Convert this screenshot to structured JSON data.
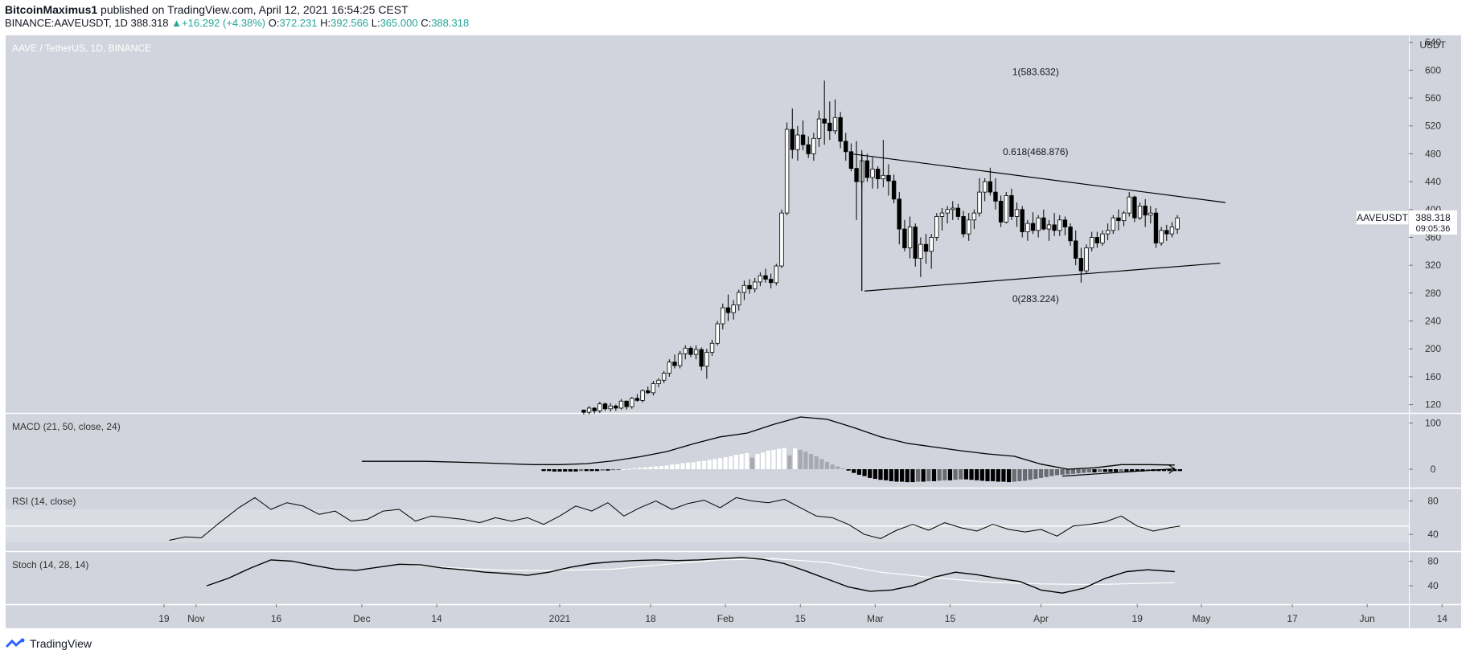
{
  "header": {
    "author": "BitcoinMaximus1",
    "published_text": "published on TradingView.com, April 12, 2021 16:54:25 CEST",
    "symbol_line": "BINANCE:AAVEUSDT, 1D",
    "last": "388.318",
    "change": "+16.292 (+4.38%)",
    "o_label": "O:",
    "o": "372.231",
    "h_label": "H:",
    "h": "392.566",
    "l_label": "L:",
    "l": "365.000",
    "c_label": "C:",
    "c": "388.318",
    "up_color": "#26a69a"
  },
  "footer": {
    "brand": "TradingView"
  },
  "chart_data": {
    "type": "candlestick",
    "title": "AAVE / TetherUS, 1D, BINANCE",
    "currency": "USDT",
    "price_label": {
      "symbol": "AAVEUSDT",
      "value": "388.318",
      "countdown": "09:05:36"
    },
    "y_ticks": [
      120,
      160,
      200,
      240,
      280,
      320,
      360,
      400,
      440,
      480,
      520,
      560,
      600,
      640
    ],
    "ylim": [
      108,
      650
    ],
    "x_ticks": [
      "19",
      "Nov",
      "16",
      "Dec",
      "14",
      "2021",
      "18",
      "Feb",
      "15",
      "Mar",
      "15",
      "Apr",
      "19",
      "May",
      "17",
      "Jun",
      "14"
    ],
    "x_tick_days": [
      -74,
      -68,
      -53,
      -37,
      -23,
      0,
      17,
      31,
      45,
      59,
      73,
      90,
      108,
      120,
      137,
      151,
      165
    ],
    "candles": [
      [
        4.5,
        112,
        113,
        106,
        109
      ],
      [
        5.5,
        109,
        118,
        106,
        115
      ],
      [
        6.5,
        115,
        116,
        107,
        111
      ],
      [
        7.5,
        111,
        124,
        108,
        121
      ],
      [
        8.5,
        121,
        123,
        111,
        114
      ],
      [
        9.5,
        114,
        122,
        110,
        118
      ],
      [
        10.5,
        118,
        120,
        111,
        115
      ],
      [
        11.5,
        115,
        128,
        113,
        125
      ],
      [
        12.5,
        125,
        126,
        113,
        117
      ],
      [
        13.5,
        117,
        131,
        114,
        129
      ],
      [
        14.5,
        129,
        135,
        124,
        126
      ],
      [
        15.5,
        126,
        142,
        123,
        140
      ],
      [
        16.5,
        140,
        146,
        135,
        137
      ],
      [
        17.5,
        137,
        154,
        133,
        150
      ],
      [
        18.5,
        150,
        158,
        145,
        155
      ],
      [
        19.5,
        155,
        168,
        151,
        165
      ],
      [
        20.5,
        165,
        185,
        160,
        181
      ],
      [
        21.5,
        181,
        192,
        172,
        176
      ],
      [
        22.5,
        176,
        197,
        172,
        193
      ],
      [
        23.5,
        193,
        205,
        185,
        201
      ],
      [
        24.5,
        201,
        204,
        188,
        192
      ],
      [
        25.5,
        192,
        205,
        185,
        199
      ],
      [
        26.5,
        199,
        202,
        169,
        175
      ],
      [
        27.5,
        175,
        200,
        157,
        195
      ],
      [
        28.5,
        195,
        213,
        190,
        208
      ],
      [
        29.5,
        208,
        240,
        205,
        236
      ],
      [
        30.5,
        236,
        265,
        228,
        259
      ],
      [
        31.5,
        259,
        278,
        240,
        252
      ],
      [
        32.5,
        252,
        270,
        242,
        263
      ],
      [
        33.5,
        263,
        285,
        255,
        281
      ],
      [
        34.5,
        281,
        298,
        270,
        291
      ],
      [
        35.5,
        291,
        300,
        279,
        286
      ],
      [
        36.5,
        286,
        302,
        281,
        296
      ],
      [
        37.5,
        296,
        310,
        290,
        305
      ],
      [
        38.5,
        305,
        315,
        295,
        300
      ],
      [
        39.5,
        300,
        308,
        287,
        295
      ],
      [
        40.5,
        295,
        322,
        291,
        319
      ],
      [
        41.5,
        319,
        400,
        316,
        395
      ],
      [
        42.5,
        395,
        525,
        392,
        515
      ],
      [
        43.5,
        515,
        545,
        473,
        486
      ],
      [
        44.5,
        486,
        520,
        470,
        507
      ],
      [
        45.5,
        507,
        528,
        485,
        493
      ],
      [
        46.5,
        493,
        505,
        474,
        480
      ],
      [
        47.5,
        480,
        510,
        470,
        502
      ],
      [
        48.5,
        502,
        542,
        490,
        530
      ],
      [
        49.5,
        530,
        585,
        493,
        524
      ],
      [
        50.5,
        524,
        555,
        500,
        513
      ],
      [
        51.5,
        513,
        558,
        508,
        532
      ],
      [
        52.5,
        532,
        540,
        488,
        498
      ],
      [
        53.5,
        498,
        510,
        470,
        483
      ],
      [
        54.5,
        483,
        495,
        455,
        459
      ],
      [
        55.5,
        459,
        498,
        385,
        440
      ],
      [
        56.5,
        440,
        485,
        430,
        470
      ],
      [
        57.5,
        470,
        480,
        440,
        446
      ],
      [
        58.5,
        446,
        475,
        430,
        458
      ],
      [
        59.5,
        458,
        462,
        430,
        444
      ],
      [
        60.5,
        444,
        500,
        432,
        449
      ],
      [
        61.5,
        449,
        465,
        420,
        441
      ],
      [
        62.5,
        441,
        450,
        409,
        415
      ],
      [
        63.5,
        415,
        425,
        350,
        372
      ],
      [
        64.5,
        372,
        385,
        340,
        345
      ],
      [
        65.5,
        345,
        390,
        330,
        375
      ],
      [
        66.5,
        375,
        380,
        318,
        330
      ],
      [
        67.5,
        330,
        360,
        303,
        350
      ],
      [
        68.5,
        350,
        365,
        322,
        340
      ],
      [
        69.5,
        340,
        365,
        315,
        360
      ],
      [
        70.5,
        360,
        395,
        355,
        390
      ],
      [
        71.5,
        390,
        402,
        370,
        395
      ],
      [
        72.5,
        395,
        405,
        380,
        400
      ],
      [
        73.5,
        400,
        412,
        385,
        402
      ],
      [
        74.5,
        402,
        408,
        385,
        390
      ],
      [
        75.5,
        390,
        398,
        360,
        365
      ],
      [
        76.5,
        365,
        395,
        355,
        385
      ],
      [
        77.5,
        385,
        400,
        372,
        395
      ],
      [
        78.5,
        395,
        445,
        390,
        425
      ],
      [
        79.5,
        425,
        445,
        412,
        440
      ],
      [
        80.5,
        440,
        460,
        420,
        425
      ],
      [
        81.5,
        425,
        445,
        400,
        412
      ],
      [
        82.5,
        412,
        420,
        375,
        382
      ],
      [
        83.5,
        382,
        425,
        380,
        420
      ],
      [
        84.5,
        420,
        430,
        385,
        390
      ],
      [
        85.5,
        390,
        410,
        375,
        400
      ],
      [
        86.5,
        400,
        405,
        360,
        368
      ],
      [
        87.5,
        368,
        385,
        355,
        380
      ],
      [
        88.5,
        380,
        396,
        365,
        370
      ],
      [
        89.5,
        370,
        392,
        360,
        388
      ],
      [
        90.5,
        388,
        400,
        370,
        372
      ],
      [
        91.5,
        372,
        385,
        355,
        378
      ],
      [
        92.5,
        378,
        395,
        362,
        370
      ],
      [
        93.5,
        370,
        392,
        362,
        385
      ],
      [
        94.5,
        385,
        390,
        363,
        375
      ],
      [
        95.5,
        375,
        380,
        348,
        355
      ],
      [
        96.5,
        355,
        370,
        320,
        330
      ],
      [
        97.5,
        330,
        345,
        295,
        312
      ],
      [
        98.5,
        312,
        350,
        308,
        345
      ],
      [
        99.5,
        345,
        368,
        340,
        360
      ],
      [
        100.5,
        360,
        368,
        345,
        352
      ],
      [
        101.5,
        352,
        370,
        348,
        365
      ],
      [
        102.5,
        365,
        380,
        356,
        370
      ],
      [
        103.5,
        370,
        392,
        365,
        388
      ],
      [
        104.5,
        388,
        400,
        370,
        384
      ],
      [
        105.5,
        384,
        398,
        376,
        395
      ],
      [
        106.5,
        395,
        425,
        390,
        418
      ],
      [
        107.5,
        418,
        420,
        382,
        388
      ],
      [
        108.5,
        388,
        410,
        385,
        405
      ],
      [
        109.5,
        405,
        415,
        375,
        392
      ],
      [
        110.5,
        392,
        405,
        380,
        395
      ],
      [
        111.5,
        395,
        402,
        345,
        352
      ],
      [
        112.5,
        352,
        375,
        348,
        370
      ],
      [
        113.5,
        370,
        378,
        355,
        365
      ],
      [
        114.5,
        365,
        382,
        360,
        375
      ],
      [
        115.5,
        372,
        392,
        365,
        388
      ]
    ],
    "trendlines": [
      {
        "name": "triangle-upper",
        "points": [
          [
            54.5,
            480
          ],
          [
            124.5,
            410
          ]
        ]
      },
      {
        "name": "triangle-lower",
        "points": [
          [
            57,
            283
          ],
          [
            123.5,
            323
          ]
        ]
      },
      {
        "name": "fib-vertical",
        "points": [
          [
            56.5,
            283
          ],
          [
            56.5,
            480
          ]
        ]
      }
    ],
    "fib_labels": [
      {
        "text": "1(583.632)",
        "day": 89,
        "value": 583.632
      },
      {
        "text": "0.618(468.876)",
        "day": 89,
        "value": 468.876
      },
      {
        "text": "0(283.224)",
        "day": 89,
        "value": 283.224
      }
    ],
    "macd": {
      "label": "MACD (21, 50, close, 24)",
      "y_ticks": [
        0,
        100
      ],
      "ylim": [
        -40,
        120
      ],
      "line_days": [
        -37,
        -25,
        -15,
        -5,
        0,
        5,
        10,
        15,
        20,
        25,
        30,
        35,
        40,
        45,
        50,
        55,
        60,
        65,
        70,
        75,
        80,
        85,
        90,
        95,
        100,
        105,
        110,
        115
      ],
      "line": [
        17,
        17,
        14,
        10,
        10,
        12,
        18,
        27,
        38,
        55,
        70,
        78,
        97,
        113,
        108,
        90,
        70,
        56,
        48,
        40,
        33,
        28,
        11,
        0,
        3,
        10,
        10,
        9
      ],
      "hist_start_day": -3,
      "hist": [
        -4,
        -4,
        -5,
        -5,
        -5,
        -5,
        -5,
        -4,
        -4,
        -4,
        -4,
        -3,
        -3,
        -2,
        -1,
        0,
        1,
        2,
        3,
        4,
        5,
        6,
        7,
        8,
        10,
        11,
        13,
        14,
        15,
        17,
        18,
        20,
        22,
        24,
        26,
        28,
        31,
        33,
        35,
        25,
        33,
        36,
        40,
        42,
        44,
        46,
        30,
        45,
        42,
        38,
        33,
        28,
        22,
        16,
        10,
        6,
        2,
        -3,
        -8,
        -12,
        -15,
        -19,
        -21,
        -23,
        -24,
        -26,
        -27,
        -27,
        -28,
        -28,
        -27,
        -27,
        -26,
        -26,
        -25,
        -24,
        -24,
        -23,
        -22,
        -22,
        -23,
        -24,
        -25,
        -26,
        -26,
        -27,
        -27,
        -28,
        -27,
        -26,
        -25,
        -23,
        -21,
        -19,
        -17,
        -15,
        -13,
        -12,
        -11,
        -10,
        -9,
        -8,
        -7,
        -7,
        -6,
        -6,
        -6,
        -6,
        -5,
        -5,
        -5,
        -5,
        -5,
        -4,
        -4,
        -4,
        -4,
        -4,
        -4,
        -4
      ],
      "arrow": [
        [
          94,
          -15
        ],
        [
          115,
          1
        ]
      ]
    },
    "rsi": {
      "label": "RSI (14, close)",
      "y_ticks": [
        40,
        80
      ],
      "ylim": [
        20,
        95
      ],
      "band": [
        30,
        70
      ],
      "line_days": [
        -73,
        -70,
        -67,
        -64,
        -60,
        -57,
        -54,
        -51,
        -48,
        -45,
        -42,
        -39,
        -36,
        -33,
        -30,
        -27,
        -24,
        -21,
        -18,
        -15,
        -12,
        -9,
        -6,
        -3,
        0,
        3,
        6,
        9,
        12,
        15,
        18,
        21,
        24,
        27,
        30,
        33,
        36,
        39,
        42,
        45,
        48,
        51,
        54,
        57,
        60,
        63,
        66,
        69,
        72,
        75,
        78,
        81,
        84,
        87,
        90,
        93,
        96,
        99,
        102,
        105,
        108,
        111,
        114,
        116
      ],
      "line": [
        33,
        37,
        36,
        52,
        72,
        84,
        70,
        78,
        74,
        64,
        68,
        56,
        58,
        68,
        70,
        56,
        62,
        60,
        58,
        54,
        60,
        56,
        60,
        52,
        62,
        74,
        68,
        78,
        62,
        72,
        80,
        70,
        77,
        81,
        72,
        84,
        80,
        78,
        82,
        72,
        62,
        60,
        52,
        40,
        35,
        45,
        52,
        45,
        54,
        48,
        44,
        52,
        46,
        43,
        46,
        38,
        50,
        52,
        55,
        62,
        50,
        44,
        48,
        50
      ]
    },
    "stoch": {
      "label": "Stoch (14, 28, 14)",
      "y_ticks": [
        40,
        80
      ],
      "ylim": [
        10,
        95
      ],
      "k_days": [
        -66,
        -62,
        -58,
        -54,
        -50,
        -46,
        -42,
        -38,
        -34,
        -30,
        -26,
        -22,
        -18,
        -14,
        -10,
        -6,
        -2,
        2,
        6,
        10,
        14,
        18,
        22,
        26,
        30,
        34,
        38,
        42,
        46,
        50,
        54,
        58,
        62,
        66,
        70,
        74,
        78,
        82,
        86,
        90,
        94,
        98,
        102,
        106,
        110,
        115
      ],
      "k": [
        40,
        52,
        68,
        82,
        80,
        73,
        67,
        65,
        70,
        75,
        74,
        69,
        66,
        62,
        60,
        57,
        62,
        70,
        76,
        79,
        81,
        82,
        81,
        82,
        84,
        86,
        83,
        76,
        64,
        51,
        38,
        31,
        33,
        40,
        54,
        62,
        58,
        52,
        47,
        33,
        28,
        36,
        52,
        63,
        66,
        63
      ],
      "d_days": [
        -30,
        -20,
        -10,
        0,
        10,
        20,
        30,
        40,
        50,
        60,
        70,
        80,
        90,
        100,
        110,
        115
      ],
      "d": [
        75,
        69,
        65,
        65,
        67,
        75,
        82,
        84,
        78,
        62,
        53,
        46,
        43,
        42,
        44,
        45
      ]
    }
  }
}
